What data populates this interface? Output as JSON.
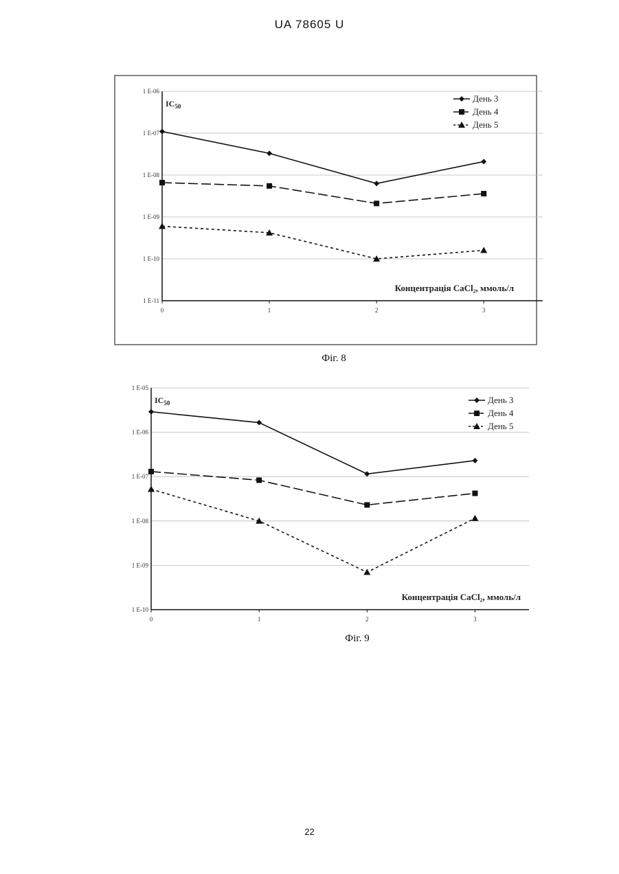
{
  "header": {
    "title": "UA   78605   U"
  },
  "footer": {
    "page_number": "22"
  },
  "chart_data": [
    {
      "type": "line",
      "caption": "Фіг. 8",
      "ylabel": "IC50",
      "xlabel": "Концентрація CaCl₂, ммоль/л",
      "yscale": "log",
      "ylim": [
        1e-11,
        1e-06
      ],
      "y_ticks": [
        "1 E-06",
        "1 E-07",
        "1 E-08",
        "1 E-09",
        "1 E-10",
        "1 E-11"
      ],
      "x": [
        0,
        1,
        2,
        3
      ],
      "xlim": [
        0,
        3.55
      ],
      "x_ticks": [
        "0",
        "1",
        "2",
        "3"
      ],
      "legend": "top-right",
      "grid": "horizontal",
      "series": [
        {
          "name": "День 3",
          "values": [
            1.1e-07,
            3.3e-08,
            6.3e-09,
            2.1e-08
          ]
        },
        {
          "name": "День 4",
          "values": [
            6.6e-09,
            5.5e-09,
            2.1e-09,
            3.6e-09
          ]
        },
        {
          "name": "День 5",
          "values": [
            6e-10,
            4.2e-10,
            1e-10,
            1.6e-10
          ]
        }
      ]
    },
    {
      "type": "line",
      "caption": "Фіг. 9",
      "ylabel": "IC50",
      "xlabel": "Концентрація CaCl₂, ммоль/л",
      "yscale": "log",
      "ylim": [
        1e-10,
        1e-05
      ],
      "y_ticks": [
        "1 E-05",
        "1 E-06",
        "1 E-07",
        "1 E-08",
        "1 E-09",
        "1 E-10"
      ],
      "x": [
        0,
        1,
        2,
        3
      ],
      "xlim": [
        0,
        3.5
      ],
      "x_ticks": [
        "0",
        "1",
        "2",
        "3"
      ],
      "legend": "top-right",
      "grid": "horizontal",
      "series": [
        {
          "name": "День 3",
          "values": [
            2.9e-06,
            1.65e-06,
            1.15e-07,
            2.3e-07
          ]
        },
        {
          "name": "День 4",
          "values": [
            1.3e-07,
            8.3e-08,
            2.3e-08,
            4.2e-08
          ]
        },
        {
          "name": "День 5",
          "values": [
            5.2e-08,
            1e-08,
            7e-10,
            1.15e-08
          ]
        }
      ]
    }
  ]
}
